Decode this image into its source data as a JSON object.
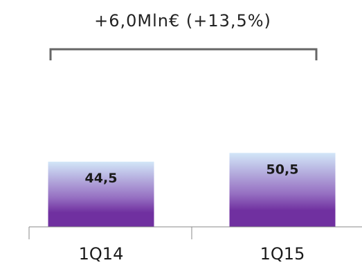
{
  "chart_data": {
    "type": "bar",
    "categories": [
      "1Q14",
      "1Q15"
    ],
    "values": [
      44.5,
      50.5
    ],
    "value_labels": [
      "44,5",
      "50,5"
    ],
    "annotation": "+6,0Mln€ (+13,5%)",
    "title": "",
    "xlabel": "",
    "ylabel": "",
    "ylim": [
      0,
      100
    ],
    "grid": false,
    "legend": "none",
    "colors": {
      "bar_top": "#d2e6f8",
      "bar_mid": "#9670c2",
      "bar_bottom": "#7030a0",
      "axis": "#888888",
      "bracket": "#666666",
      "text": "#1a1a1a"
    }
  }
}
